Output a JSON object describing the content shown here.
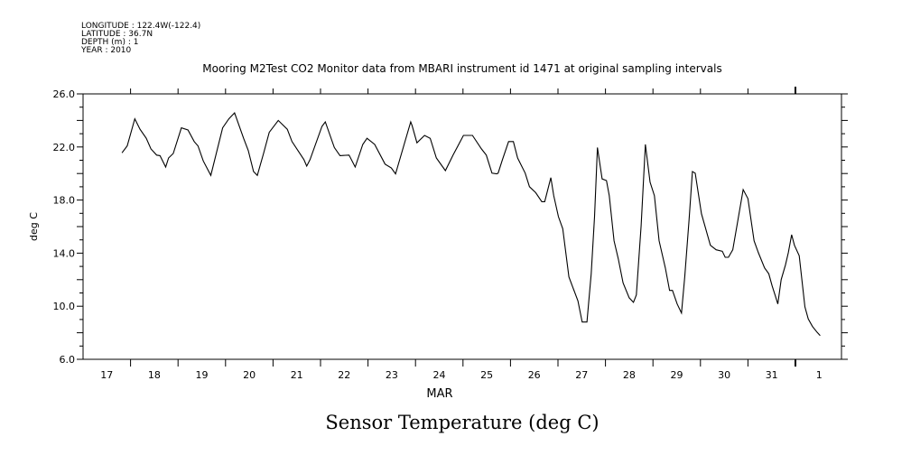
{
  "header": {
    "longitude": "LONGITUDE : 122.4W(-122.4)",
    "latitude": "LATITUDE : 36.7N",
    "depth": "DEPTH (m) : 1",
    "year": "YEAR : 2010"
  },
  "chart_data": {
    "type": "line",
    "title": "Mooring M2Test CO2 Monitor data from MBARI instrument id 1471 at original sampling intervals",
    "caption": "Sensor Temperature (deg C)",
    "xlabel": "MAR",
    "ylabel": "deg C",
    "x_units": "days since 17 MAR 2010 00:00",
    "xlim": [
      0,
      15.97
    ],
    "ylim": [
      6,
      26
    ],
    "x_tick_labels": [
      "17",
      "18",
      "19",
      "20",
      "21",
      "22",
      "23",
      "24",
      "25",
      "26",
      "27",
      "28",
      "29",
      "30",
      "31",
      "1"
    ],
    "y_tick_labels": [
      "6.0",
      "10.0",
      "14.0",
      "18.0",
      "22.0",
      "26.0"
    ],
    "y_tick_values": [
      6,
      10,
      14,
      18,
      22,
      26
    ],
    "grid": false,
    "series": [
      {
        "name": "Sensor Temperature",
        "color": "#000000",
        "x": [
          0.82,
          0.93,
          1.09,
          1.2,
          1.33,
          1.43,
          1.55,
          1.62,
          1.74,
          1.8,
          1.9,
          2.07,
          2.21,
          2.34,
          2.42,
          2.53,
          2.69,
          2.94,
          3.07,
          3.19,
          3.38,
          3.48,
          3.59,
          3.67,
          3.8,
          3.92,
          4.11,
          4.3,
          4.4,
          4.65,
          4.71,
          4.78,
          5.03,
          5.1,
          5.29,
          5.41,
          5.6,
          5.73,
          5.89,
          5.98,
          6.14,
          6.36,
          6.49,
          6.58,
          6.9,
          6.93,
          7.03,
          7.19,
          7.31,
          7.44,
          7.63,
          7.79,
          8.01,
          8.2,
          8.39,
          8.49,
          8.61,
          8.71,
          8.74,
          8.83,
          8.96,
          9.06,
          9.15,
          9.31,
          9.4,
          9.53,
          9.66,
          9.72,
          9.85,
          9.91,
          10.01,
          10.1,
          10.23,
          10.42,
          10.51,
          10.61,
          10.7,
          10.77,
          10.83,
          10.93,
          11.02,
          11.08,
          11.18,
          11.27,
          11.37,
          11.5,
          11.59,
          11.65,
          11.75,
          11.84,
          11.94,
          12.03,
          12.13,
          12.26,
          12.35,
          12.41,
          12.51,
          12.6,
          12.67,
          12.76,
          12.83,
          12.89,
          13.02,
          13.21,
          13.33,
          13.46,
          13.52,
          13.59,
          13.68,
          13.78,
          13.9,
          14.0,
          14.13,
          14.22,
          14.35,
          14.44,
          14.51,
          14.57,
          14.63,
          14.7,
          14.79,
          14.85,
          14.92,
          14.98,
          15.08,
          15.2,
          15.27,
          15.36,
          15.46,
          15.52
        ],
        "y": [
          21.56,
          22.08,
          24.12,
          23.33,
          22.65,
          21.85,
          21.39,
          21.35,
          20.49,
          21.17,
          21.51,
          23.44,
          23.28,
          22.41,
          22.08,
          20.95,
          19.86,
          23.44,
          24.12,
          24.57,
          22.65,
          21.73,
          20.15,
          19.86,
          21.51,
          23.1,
          24.0,
          23.33,
          22.41,
          21.05,
          20.56,
          21.05,
          23.55,
          23.89,
          21.96,
          21.35,
          21.39,
          20.49,
          22.19,
          22.65,
          22.19,
          20.71,
          20.42,
          19.97,
          23.89,
          23.6,
          22.31,
          22.87,
          22.65,
          21.17,
          20.22,
          21.39,
          22.87,
          22.87,
          21.85,
          21.39,
          20.03,
          19.97,
          20.03,
          21.05,
          22.41,
          22.41,
          21.17,
          20.03,
          19.01,
          18.56,
          17.88,
          17.88,
          19.69,
          18.33,
          16.75,
          15.84,
          12.21,
          10.4,
          8.81,
          8.81,
          12.44,
          16.75,
          21.96,
          19.59,
          19.47,
          18.33,
          14.93,
          13.57,
          11.76,
          10.63,
          10.29,
          10.85,
          16.07,
          22.19,
          19.35,
          18.33,
          14.93,
          12.89,
          11.19,
          11.19,
          10.17,
          9.49,
          12.21,
          16.52,
          20.15,
          20.03,
          16.97,
          14.59,
          14.25,
          14.14,
          13.69,
          13.69,
          14.25,
          16.29,
          18.79,
          18.11,
          14.93,
          14.03,
          12.89,
          12.44,
          11.53,
          10.85,
          10.17,
          12.0,
          13.12,
          14.03,
          15.39,
          14.59,
          13.8,
          9.95,
          9.04,
          8.47,
          8.02,
          7.79
        ]
      }
    ]
  }
}
